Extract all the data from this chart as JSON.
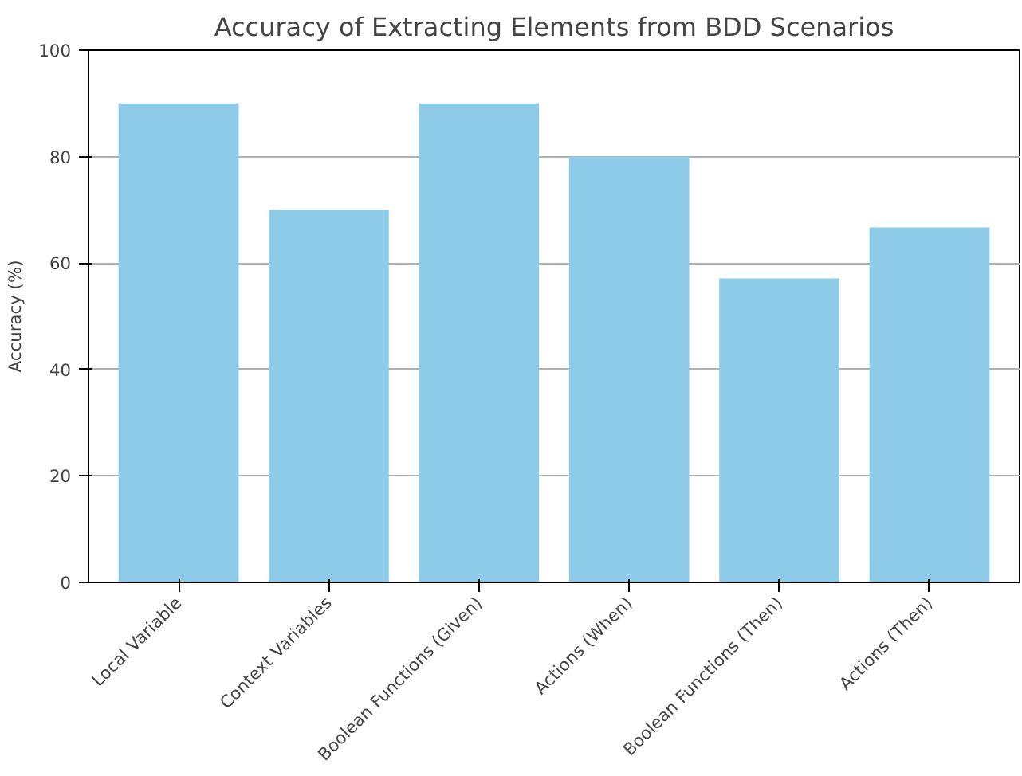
{
  "chart_data": {
    "type": "bar",
    "title": "Accuracy of Extracting Elements from BDD Scenarios",
    "ylabel": "Accuracy (%)",
    "categories": [
      "Local Variable",
      "Context Variables",
      "Boolean Functions (Given)",
      "Actions (When)",
      "Boolean Functions (Then)",
      "Actions (Then)"
    ],
    "values": [
      90,
      70,
      90,
      80,
      57.1,
      66.7
    ],
    "color": "#8ecbe9",
    "ylim": [
      0,
      100
    ],
    "yticks": [
      0,
      20,
      40,
      60,
      80,
      100
    ],
    "grid": "y"
  }
}
